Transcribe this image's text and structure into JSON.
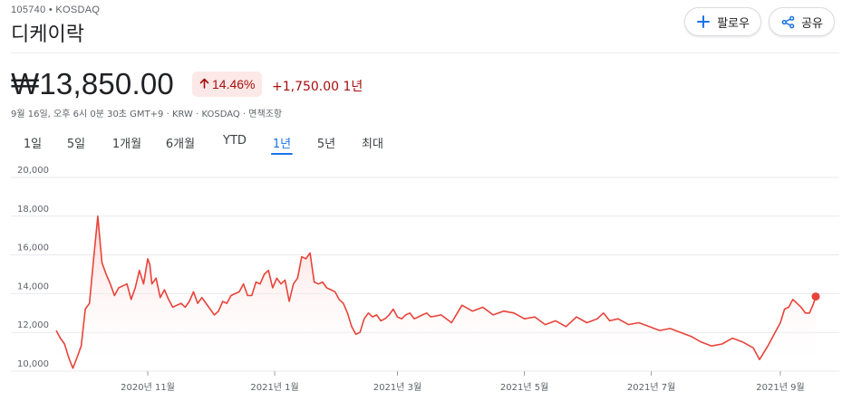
{
  "header": {
    "ticker": "105740 • KOSDAQ",
    "company_name": "디케이락",
    "follow_label": "팔로우",
    "share_label": "공유"
  },
  "quote": {
    "price": "₩13,850.00",
    "change_percent": "14.46%",
    "change_abs": "+1,750.00 1년",
    "meta": "9월 16일, 오후 6시 0분 30초 GMT+9 · KRW · KOSDAQ · 면책조항"
  },
  "range_tabs": [
    {
      "label": "1일",
      "active": false
    },
    {
      "label": "5일",
      "active": false
    },
    {
      "label": "1개월",
      "active": false
    },
    {
      "label": "6개월",
      "active": false
    },
    {
      "label": "YTD",
      "active": false
    },
    {
      "label": "1년",
      "active": true
    },
    {
      "label": "5년",
      "active": false
    },
    {
      "label": "최대",
      "active": false
    }
  ],
  "colors": {
    "line": "#e8433a",
    "fill_top": "#fad2cf",
    "grid": "#e8eaed",
    "negative": "#a50e0e",
    "accent": "#1a73e8"
  },
  "chart_data": {
    "type": "area",
    "ylim": [
      10000,
      20000
    ],
    "yticks": [
      10000,
      12000,
      14000,
      16000,
      18000,
      20000
    ],
    "ytick_labels": [
      "10,000",
      "12,000",
      "14,000",
      "16,000",
      "18,000",
      "20,000"
    ],
    "xlim": [
      0,
      365
    ],
    "xticks": [
      {
        "label": "2020년 11월",
        "x": 44
      },
      {
        "label": "2021년 1월",
        "x": 105
      },
      {
        "label": "2021년 3월",
        "x": 164
      },
      {
        "label": "2021년 5월",
        "x": 225
      },
      {
        "label": "2021년 7월",
        "x": 286
      },
      {
        "label": "2021년 9월",
        "x": 348
      }
    ],
    "series": [
      {
        "x": [
          0,
          2,
          4,
          6,
          8,
          10,
          12,
          14,
          16,
          18,
          20,
          22,
          24,
          26,
          28,
          30,
          32,
          34,
          36,
          38,
          40,
          42,
          44,
          45,
          46,
          48,
          50,
          52,
          54,
          56,
          58,
          60,
          62,
          64,
          66,
          68,
          70,
          72,
          74,
          76,
          78,
          80,
          82,
          84,
          86,
          88,
          90,
          92,
          94,
          96,
          98,
          100,
          102,
          104,
          106,
          108,
          110,
          112,
          114,
          116,
          118,
          120,
          122,
          124,
          126,
          128,
          130,
          132,
          134,
          136,
          138,
          140,
          142,
          144,
          146,
          148,
          150,
          152,
          154,
          156,
          158,
          160,
          162,
          164,
          166,
          168,
          170,
          172,
          174,
          176,
          178,
          180,
          185,
          190,
          195,
          200,
          205,
          210,
          215,
          220,
          225,
          230,
          235,
          240,
          245,
          250,
          255,
          260,
          263,
          266,
          270,
          275,
          280,
          285,
          290,
          295,
          300,
          305,
          310,
          315,
          320,
          325,
          330,
          335,
          338,
          342,
          345,
          348,
          350,
          352,
          354,
          356,
          358,
          360,
          362,
          364,
          365
        ],
        "y": [
          12100,
          11700,
          11400,
          10700,
          10150,
          10700,
          11300,
          13200,
          13500,
          15800,
          18000,
          15600,
          15000,
          14500,
          13900,
          14300,
          14400,
          14500,
          13700,
          14300,
          15200,
          14500,
          15800,
          15500,
          14500,
          14800,
          13800,
          14200,
          13700,
          13300,
          13400,
          13500,
          13300,
          13600,
          14100,
          13500,
          13800,
          13500,
          13200,
          12900,
          13100,
          13600,
          13500,
          13900,
          14000,
          14100,
          14500,
          13900,
          13900,
          14600,
          14500,
          15000,
          15200,
          14300,
          14800,
          14500,
          14700,
          13600,
          14500,
          14800,
          15900,
          15800,
          16100,
          14600,
          14500,
          14600,
          14300,
          14200,
          14100,
          13700,
          13500,
          13000,
          12300,
          11900,
          12000,
          12700,
          13000,
          12800,
          12900,
          12600,
          12700,
          12900,
          13200,
          12800,
          12700,
          12900,
          13000,
          12700,
          12800,
          12900,
          13000,
          12800,
          12900,
          12500,
          13400,
          13100,
          13300,
          12900,
          13100,
          13000,
          12700,
          12800,
          12400,
          12600,
          12300,
          12800,
          12500,
          12700,
          13000,
          12600,
          12700,
          12400,
          12500,
          12300,
          12100,
          12200,
          12000,
          11800,
          11500,
          11300,
          11400,
          11700,
          11500,
          11200,
          10600,
          11300,
          11900,
          12500,
          13200,
          13300,
          13700,
          13500,
          13300,
          13000,
          13000,
          13500,
          13850
        ]
      }
    ],
    "last_point": {
      "x": 365,
      "y": 13850
    }
  }
}
